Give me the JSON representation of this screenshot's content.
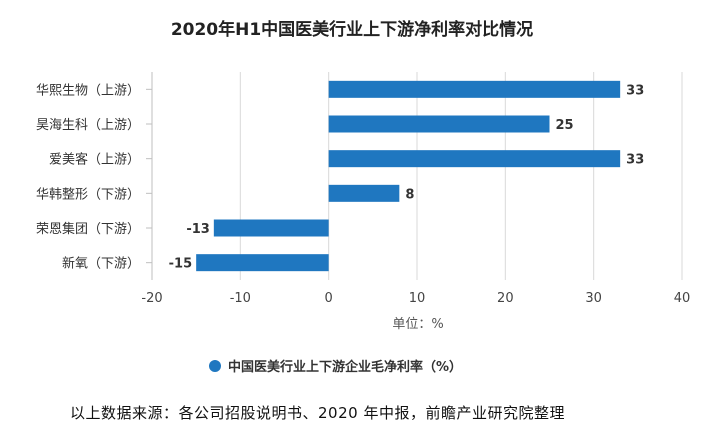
{
  "chart_data": {
    "type": "bar",
    "orientation": "horizontal",
    "title": "2020年H1中国医美行业上下游净利率对比情况",
    "categories": [
      "华熙生物（上游）",
      "昊海生科（上游）",
      "爱美客（上游）",
      "华韩整形（下游）",
      "荣恩集团（下游）",
      "新氧（下游）"
    ],
    "series": [
      {
        "name": "中国医美行业上下游企业毛净利率（%）",
        "values": [
          33,
          25,
          33,
          8,
          -13,
          -15
        ]
      }
    ],
    "data_labels": [
      "33",
      "25",
      "33",
      "8",
      "-13",
      "-15"
    ],
    "xlim": [
      -20,
      40
    ],
    "xticks": [
      "-20",
      "-10",
      "0",
      "10",
      "20",
      "30",
      "40"
    ],
    "xlabel": "单位：%",
    "ylabel": "",
    "legend_position": "bottom",
    "grid": "vertical",
    "bar_color": "#1f77c0",
    "grid_color": "#d9d9d9"
  },
  "source_text": "以上数据来源：各公司招股说明书、2020 年中报，前瞻产业研究院整理"
}
